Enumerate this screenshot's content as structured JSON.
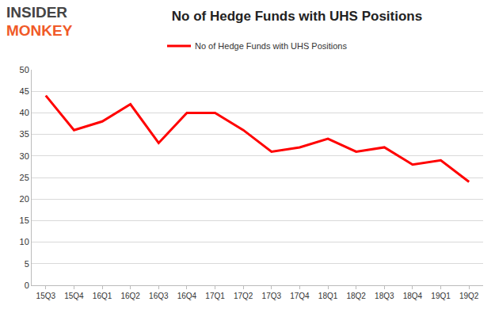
{
  "chart_data": {
    "type": "line",
    "title": "No of Hedge Funds with UHS Positions",
    "annotations": [
      "INSIDER",
      "MONKEY"
    ],
    "categories": [
      "15Q3",
      "15Q4",
      "16Q1",
      "16Q2",
      "16Q3",
      "16Q4",
      "17Q1",
      "17Q2",
      "17Q3",
      "17Q4",
      "18Q1",
      "18Q2",
      "18Q3",
      "18Q4",
      "19Q1",
      "19Q2"
    ],
    "series": [
      {
        "name": "No of Hedge Funds with UHS Positions",
        "color": "#ff0000",
        "values": [
          44,
          36,
          38,
          42,
          33,
          40,
          40,
          36,
          31,
          32,
          34,
          31,
          32,
          28,
          29,
          24
        ]
      }
    ],
    "ylim": [
      0,
      50
    ],
    "yticks": [
      0,
      5,
      10,
      15,
      20,
      25,
      30,
      35,
      40,
      45,
      50
    ],
    "grid": true,
    "legend": "top"
  }
}
